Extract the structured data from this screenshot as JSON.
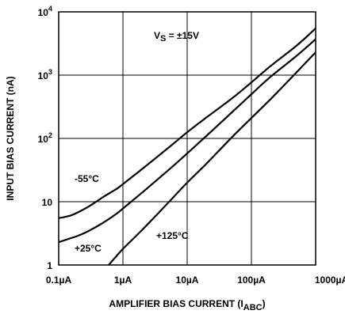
{
  "chart_data": {
    "type": "line",
    "xlabel": "AMPLIFIER BIAS CURRENT (I",
    "xlabel_sub": "ABC",
    "xlabel_close": ")",
    "ylabel": "INPUT BIAS CURRENT (nA)",
    "x_scale": "log",
    "y_scale": "log",
    "xlim": [
      0.1,
      1000
    ],
    "ylim": [
      1,
      10000
    ],
    "grid": true,
    "legend": "none",
    "x_ticks": [
      {
        "value": 0.1,
        "label": "0.1µA"
      },
      {
        "value": 1,
        "label": "1µA"
      },
      {
        "value": 10,
        "label": "10µA"
      },
      {
        "value": 100,
        "label": "100µA"
      },
      {
        "value": 1000,
        "label": "1000µA"
      }
    ],
    "y_ticks": [
      {
        "value": 1,
        "base": "1",
        "exp": ""
      },
      {
        "value": 10,
        "base": "10",
        "exp": ""
      },
      {
        "value": 100,
        "base": "10",
        "exp": "2"
      },
      {
        "value": 1000,
        "base": "10",
        "exp": "3"
      },
      {
        "value": 10000,
        "base": "10",
        "exp": "4"
      }
    ],
    "conditions": {
      "main": "V",
      "sub": "S",
      "rest": " = ±15V"
    },
    "series": [
      {
        "name": "-55°C",
        "x": [
          0.1,
          0.15,
          0.2,
          0.3,
          0.5,
          0.8,
          1,
          2,
          5,
          10,
          20,
          50,
          100,
          200,
          500,
          1000
        ],
        "y": [
          5.5,
          6,
          6.8,
          8.5,
          12,
          16,
          19,
          33,
          70,
          125,
          215,
          430,
          770,
          1400,
          2900,
          5500
        ]
      },
      {
        "name": "+25°C",
        "x": [
          0.1,
          0.2,
          0.3,
          0.5,
          0.8,
          1,
          2,
          5,
          10,
          20,
          50,
          100,
          200,
          500,
          1000
        ],
        "y": [
          2.3,
          2.9,
          3.5,
          4.7,
          6.5,
          7.8,
          14,
          31,
          58,
          110,
          260,
          500,
          950,
          2000,
          3700
        ]
      },
      {
        "name": "+125°C",
        "x": [
          0.6,
          0.8,
          1,
          1.5,
          2,
          3,
          5,
          10,
          20,
          50,
          100,
          200,
          500,
          1000
        ],
        "y": [
          1,
          1.4,
          1.8,
          2.7,
          3.6,
          5.5,
          9.5,
          20,
          40,
          105,
          210,
          420,
          1100,
          2300
        ]
      }
    ]
  }
}
